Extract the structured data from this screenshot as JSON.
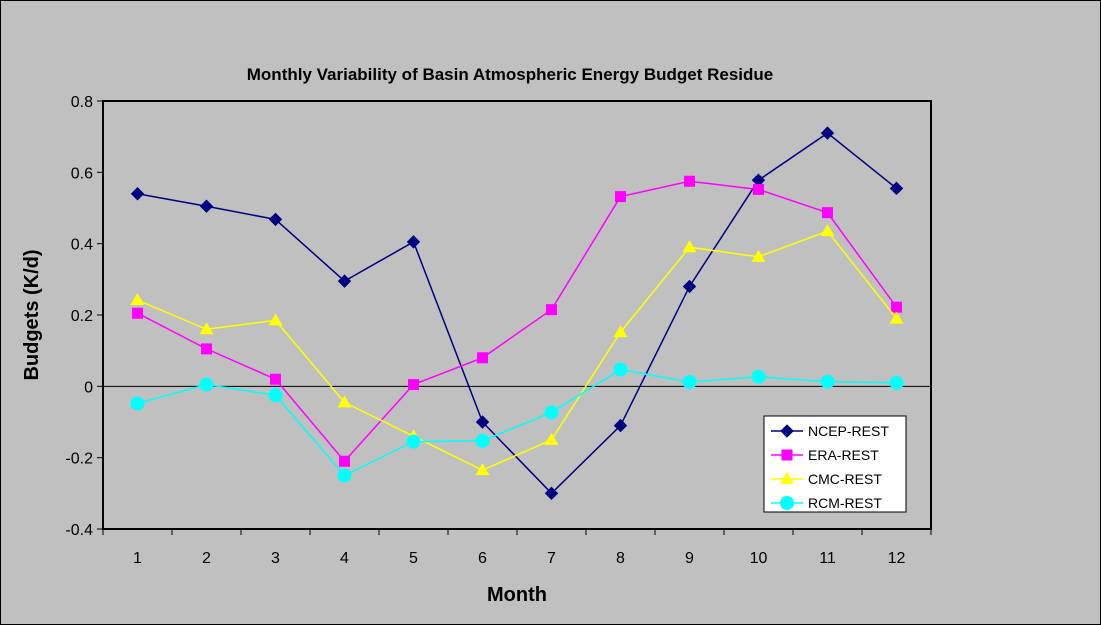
{
  "chart_data": {
    "type": "line",
    "title": "Monthly Variability of Basin Atmospheric Energy Budget Residue",
    "xlabel": "Month",
    "ylabel": "Budgets (K/d)",
    "categories": [
      "1",
      "2",
      "3",
      "4",
      "5",
      "6",
      "7",
      "8",
      "9",
      "10",
      "11",
      "12"
    ],
    "ylim": [
      -0.4,
      0.8
    ],
    "yticks": [
      -0.4,
      -0.2,
      0,
      0.2,
      0.4,
      0.6,
      0.8
    ],
    "ytick_labels": [
      "-0.4",
      "-0.2",
      "0",
      "0.2",
      "0.4",
      "0.6",
      "0.8"
    ],
    "grid": false,
    "legend_position": "bottom-right",
    "series": [
      {
        "name": "NCEP-REST",
        "color": "#000080",
        "marker": "diamond",
        "values": [
          0.54,
          0.505,
          0.468,
          0.295,
          0.405,
          -0.1,
          -0.3,
          -0.11,
          0.28,
          0.578,
          0.71,
          0.555
        ]
      },
      {
        "name": "ERA-REST",
        "color": "#ff00ff",
        "marker": "square",
        "values": [
          0.205,
          0.105,
          0.02,
          -0.21,
          0.005,
          0.08,
          0.215,
          0.532,
          0.575,
          0.552,
          0.487,
          0.222
        ]
      },
      {
        "name": "CMC-REST",
        "color": "#ffff00",
        "marker": "triangle",
        "values": [
          0.242,
          0.16,
          0.185,
          -0.045,
          -0.14,
          -0.235,
          -0.15,
          0.152,
          0.39,
          0.363,
          0.435,
          0.19
        ]
      },
      {
        "name": "RCM-REST",
        "color": "#00ffff",
        "marker": "circle",
        "values": [
          -0.048,
          0.005,
          -0.025,
          -0.25,
          -0.155,
          -0.153,
          -0.073,
          0.047,
          0.012,
          0.027,
          0.013,
          0.01
        ]
      }
    ]
  }
}
